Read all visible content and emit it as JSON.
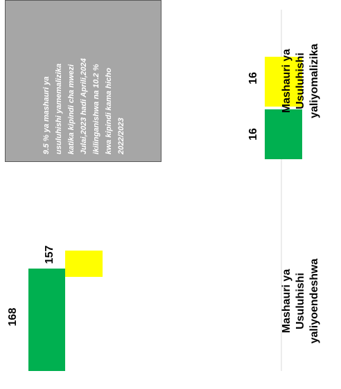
{
  "chart_data": {
    "type": "bar",
    "orientation": "horizontal",
    "categories": [
      "Mashauri ya Usuluhishi yaliyoendeshwa",
      "Mashauri ya Usuluhishi yaliyomalizika"
    ],
    "category_labels": [
      "Mashauri ya Usuluhishi\nyaliyoendeshwa",
      "Mashauri ya Usuluhishi\nyaliyomalizika"
    ],
    "series": [
      {
        "color": "#00b050",
        "values": [
          168,
          16
        ],
        "labels": [
          "168",
          "16"
        ]
      },
      {
        "color": "#ffff00",
        "values": [
          157,
          16
        ],
        "labels": [
          "157",
          "16"
        ]
      }
    ],
    "value_axis_max": 180,
    "grid": false,
    "legend": "none",
    "annotation": "9.5 % ya mashauri ya\nusuluhishi yamemalizika\nkatika kipindi cha mwezi\nJulai,2023 hadi Aprili,2024\nikilinganishwa na 10.2 %\nkwa kipindi kama hicho\n2022/2023"
  }
}
